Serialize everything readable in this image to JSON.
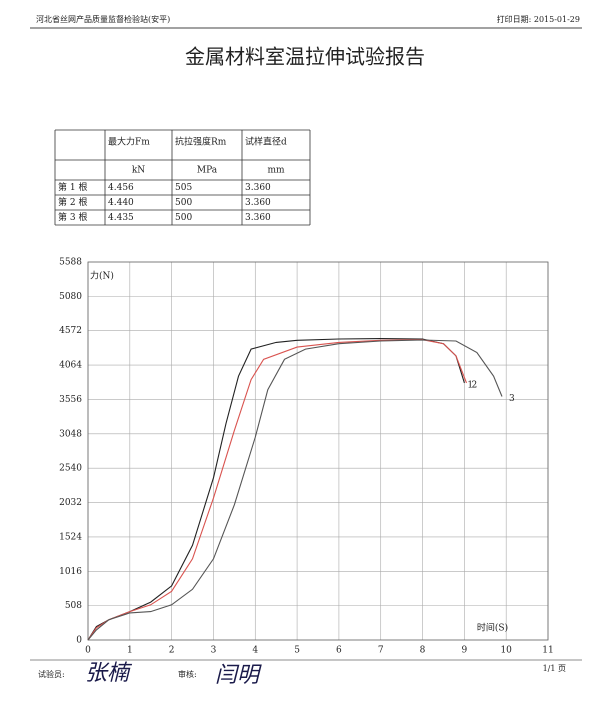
{
  "header": {
    "org": "河北省丝网产品质量监督检验站(安平)",
    "print_date": "打印日期: 2015-01-29",
    "title": "金属材料室温拉伸试验报告"
  },
  "table": {
    "columns": [
      "最大力Fm",
      "抗拉强度Rm",
      "试样直径d"
    ],
    "units": [
      "kN",
      "MPa",
      "mm"
    ],
    "rows": [
      [
        "第 1 根",
        "4.456",
        "505",
        "3.360"
      ],
      [
        "第 2 根",
        "4.440",
        "500",
        "3.360"
      ],
      [
        "第 3 根",
        "4.435",
        "500",
        "3.360"
      ]
    ]
  },
  "chart_data": {
    "type": "line",
    "xlabel": "时间(S)",
    "ylabel": "力(N)",
    "grid": true,
    "xlim": [
      0,
      11
    ],
    "xticks": [
      0,
      1,
      2,
      3,
      4,
      5,
      6,
      7,
      8,
      9,
      10,
      11
    ],
    "ylim": [
      0,
      5588
    ],
    "yticks": [
      0,
      508,
      1016,
      1524,
      2032,
      2540,
      3048,
      3556,
      4064,
      4572,
      5080,
      5588
    ],
    "series": [
      {
        "name": "1",
        "color": "#222222",
        "x": [
          0,
          0.2,
          0.5,
          1,
          1.5,
          2,
          2.5,
          3,
          3.3,
          3.6,
          3.9,
          4.5,
          5,
          6,
          7,
          8,
          8.5,
          8.8,
          9.0
        ],
        "values": [
          0,
          200,
          300,
          420,
          560,
          800,
          1400,
          2400,
          3200,
          3900,
          4300,
          4400,
          4430,
          4450,
          4456,
          4450,
          4380,
          4200,
          3800
        ]
      },
      {
        "name": "2",
        "color": "#d9534f",
        "x": [
          0,
          0.2,
          0.5,
          1,
          1.5,
          2,
          2.5,
          3,
          3.5,
          3.9,
          4.2,
          5,
          6,
          7,
          8,
          8.5,
          8.8,
          9.05
        ],
        "values": [
          0,
          180,
          300,
          420,
          520,
          720,
          1200,
          2100,
          3100,
          3850,
          4150,
          4330,
          4400,
          4430,
          4440,
          4380,
          4200,
          3800
        ]
      },
      {
        "name": "3",
        "color": "#555555",
        "x": [
          0,
          0.2,
          0.5,
          1,
          1.5,
          2,
          2.5,
          3,
          3.5,
          4,
          4.3,
          4.7,
          5.2,
          6,
          7,
          8,
          8.8,
          9.3,
          9.7,
          9.9
        ],
        "values": [
          0,
          150,
          300,
          400,
          420,
          520,
          750,
          1200,
          2000,
          3000,
          3700,
          4150,
          4300,
          4380,
          4420,
          4435,
          4420,
          4250,
          3900,
          3600
        ]
      }
    ]
  },
  "footer": {
    "tester_label": "试验员:",
    "tester": "张楠",
    "reviewer_label": "审核:",
    "reviewer": "闫明",
    "page": "1/1 页"
  }
}
